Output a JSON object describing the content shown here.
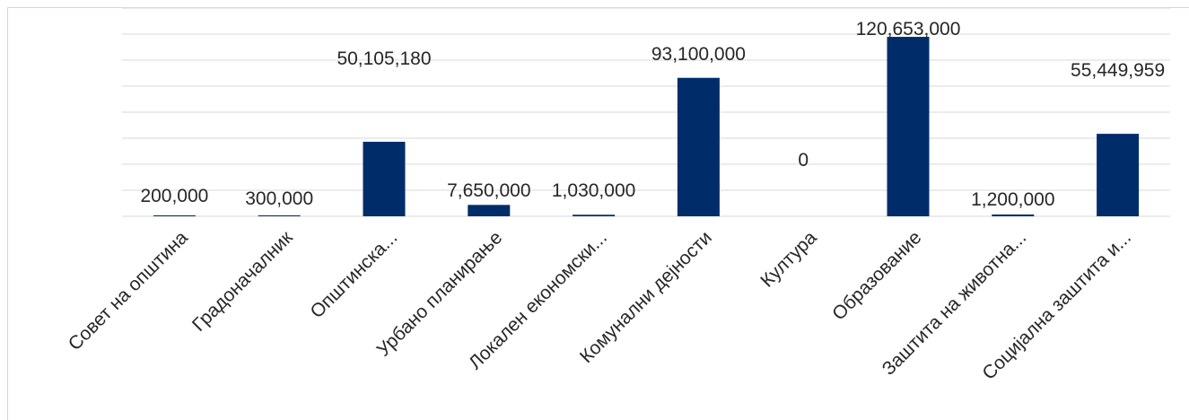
{
  "chart_data": {
    "type": "bar",
    "categories": [
      "Совет на општина",
      "Градоначалник",
      "Општинска...",
      "Урбано планирање",
      "Локален економски...",
      "Комунални дејности",
      "Култура",
      "Образование",
      "Заштита на животна...",
      "Социјална заштита и..."
    ],
    "values": [
      200000,
      300000,
      50105180,
      7650000,
      1030000,
      93100000,
      0,
      120653000,
      1200000,
      55449959
    ],
    "data_labels": [
      "200,000",
      "300,000",
      "50,105,180",
      "7,650,000",
      "1,030,000",
      "93,100,000",
      "0",
      "120,653,000",
      "1,200,000",
      "55,449,959"
    ],
    "ylim": [
      0,
      140000000
    ],
    "grid": true,
    "legend": "none",
    "colors": {
      "bar": "#002D6A",
      "grid": "#D9D9D9",
      "label": "#262626"
    }
  }
}
